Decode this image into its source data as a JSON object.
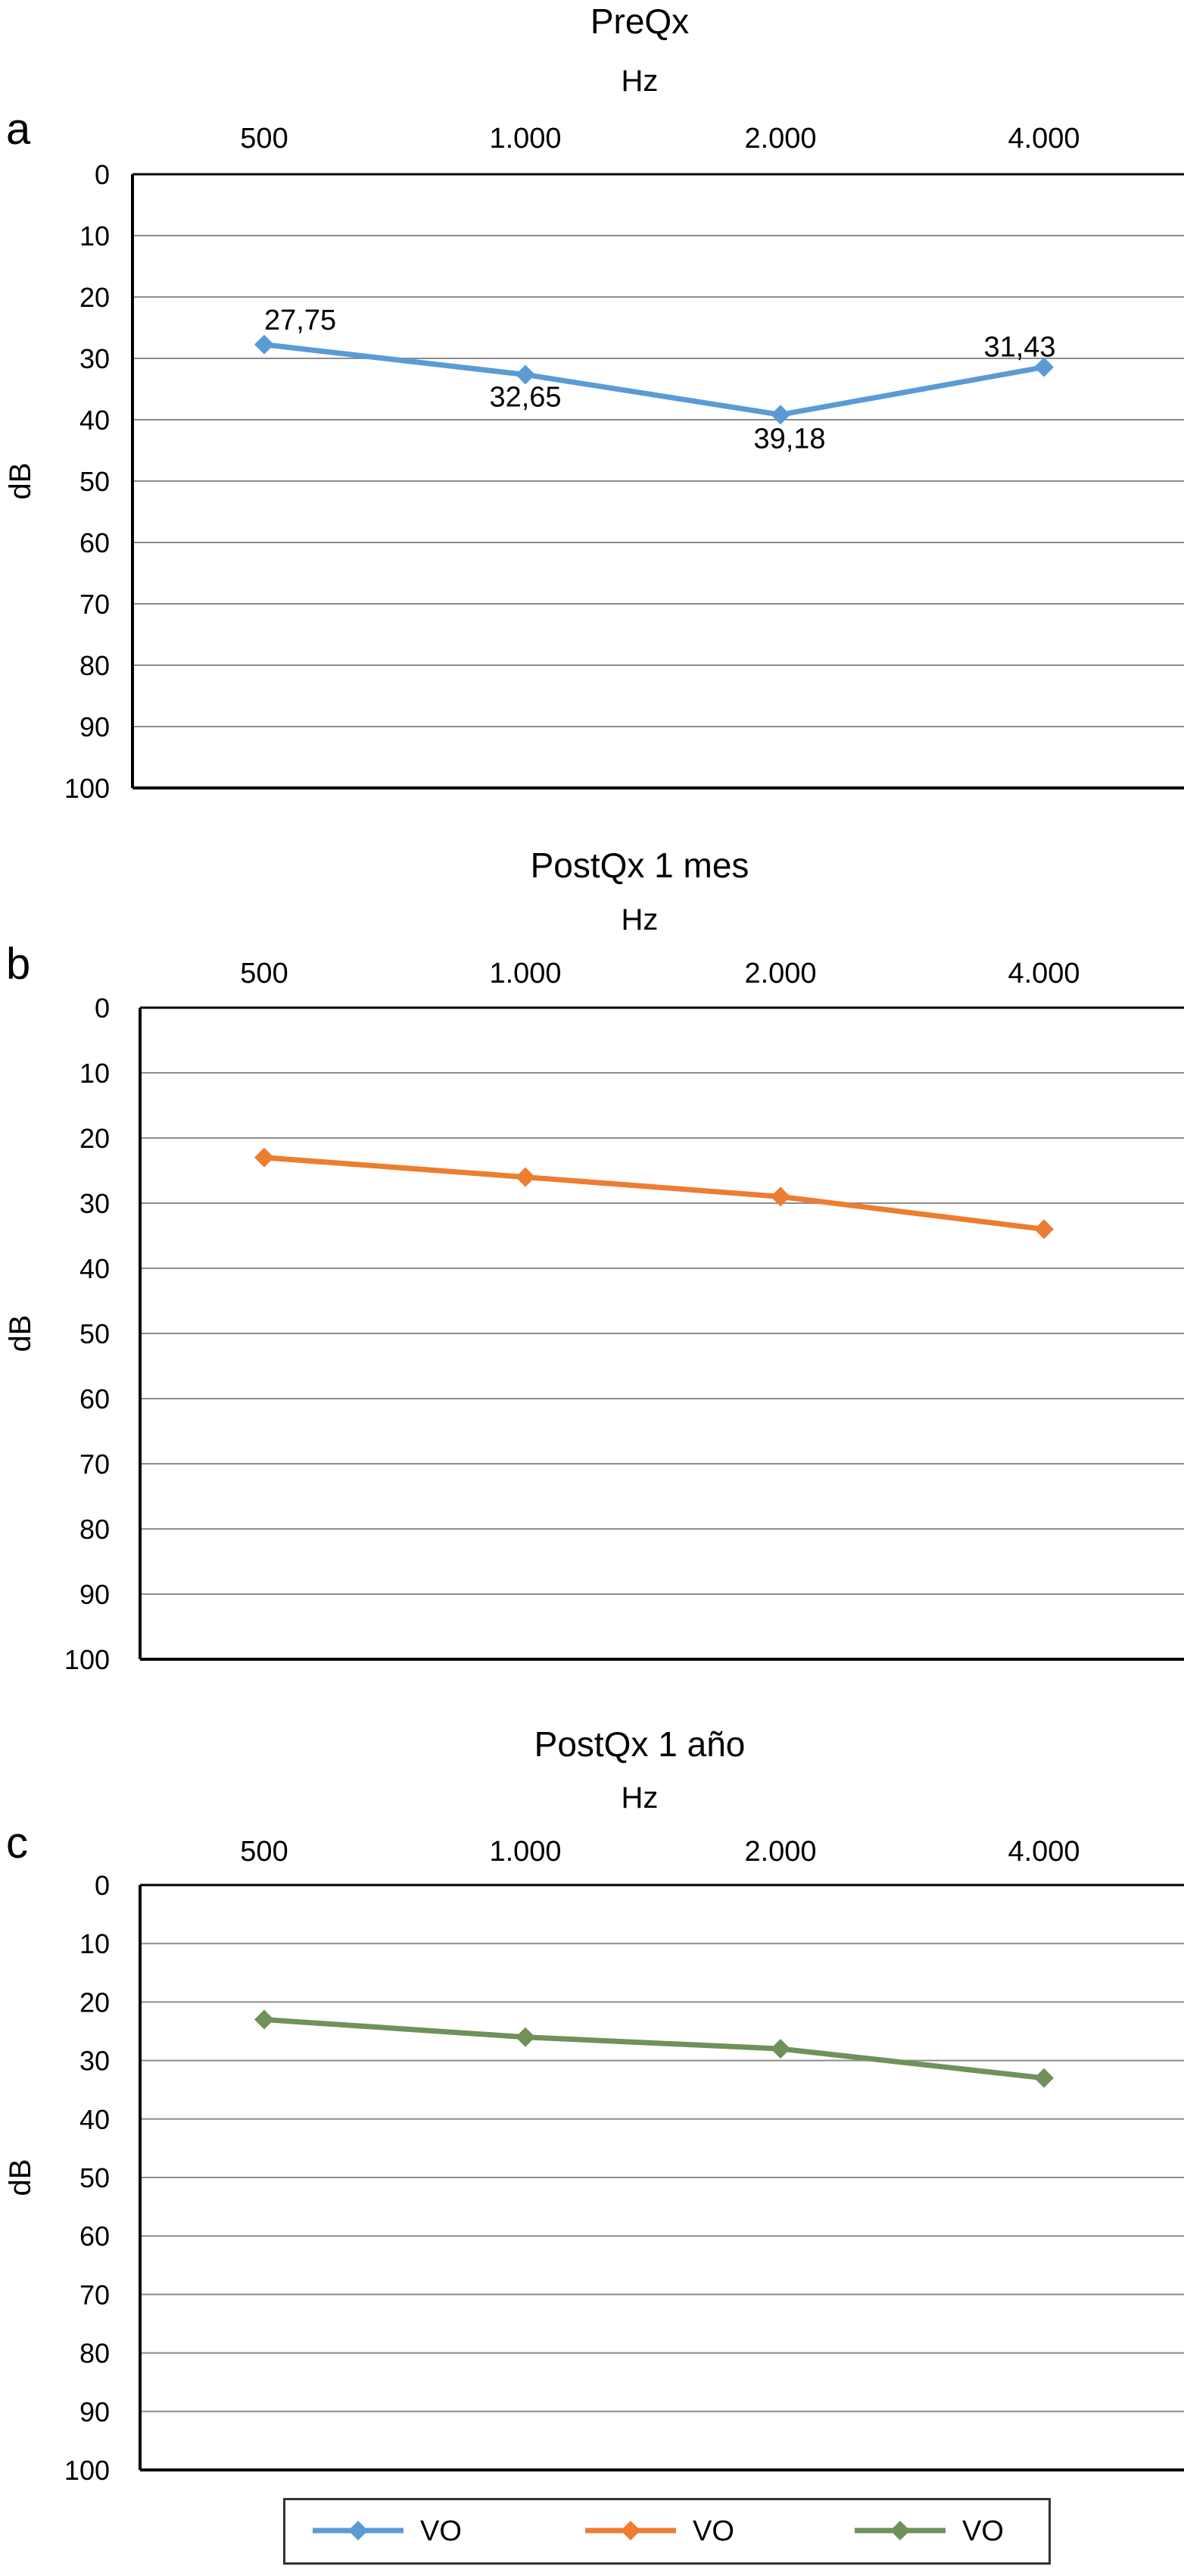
{
  "chart_data": [
    {
      "panel_label": "a",
      "type": "line",
      "title": "PreQx",
      "xlabel": "Hz",
      "ylabel": "dB",
      "categories": [
        "500",
        "1.000",
        "2.000",
        "4.000"
      ],
      "y_ticks": [
        "0",
        "10",
        "20",
        "30",
        "40",
        "50",
        "60",
        "70",
        "80",
        "90",
        "100"
      ],
      "ylim": [
        0,
        100
      ],
      "y_inverted": true,
      "grid": true,
      "series": [
        {
          "name": "VO",
          "color": "#5B9BD5",
          "values": [
            27.75,
            32.65,
            39.18,
            31.43
          ],
          "data_labels": [
            "27,75",
            "32,65",
            "39,18",
            "31,43"
          ]
        }
      ]
    },
    {
      "panel_label": "b",
      "type": "line",
      "title": "PostQx 1 mes",
      "xlabel": "Hz",
      "ylabel": "dB",
      "categories": [
        "500",
        "1.000",
        "2.000",
        "4.000"
      ],
      "y_ticks": [
        "0",
        "10",
        "20",
        "30",
        "40",
        "50",
        "60",
        "70",
        "80",
        "90",
        "100"
      ],
      "ylim": [
        0,
        100
      ],
      "y_inverted": true,
      "grid": true,
      "series": [
        {
          "name": "VO",
          "color": "#ED7D31",
          "values": [
            23,
            26,
            29,
            34
          ]
        }
      ]
    },
    {
      "panel_label": "c",
      "type": "line",
      "title": "PostQx 1 año",
      "xlabel": "Hz",
      "ylabel": "dB",
      "categories": [
        "500",
        "1.000",
        "2.000",
        "4.000"
      ],
      "y_ticks": [
        "0",
        "10",
        "20",
        "30",
        "40",
        "50",
        "60",
        "70",
        "80",
        "90",
        "100"
      ],
      "ylim": [
        0,
        100
      ],
      "y_inverted": true,
      "grid": true,
      "series": [
        {
          "name": "VO",
          "color": "#70915A",
          "values": [
            23,
            26,
            28,
            33
          ]
        }
      ]
    }
  ],
  "legend": {
    "position": "bottom",
    "items": [
      {
        "label": "VO",
        "color": "#5B9BD5"
      },
      {
        "label": "VO",
        "color": "#ED7D31"
      },
      {
        "label": "VO",
        "color": "#70915A"
      }
    ]
  }
}
